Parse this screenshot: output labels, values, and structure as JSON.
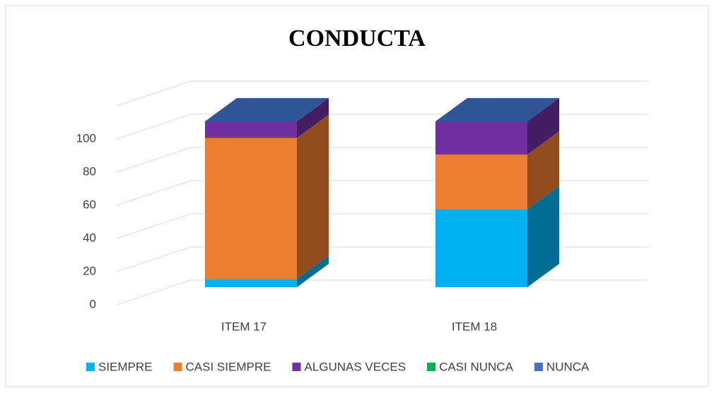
{
  "chart_data": {
    "type": "bar3d_stacked",
    "title": "CONDUCTA",
    "categories": [
      "ITEM 17",
      "ITEM 18"
    ],
    "series": [
      {
        "name": "SIEMPRE",
        "color": "#00b0f0",
        "values": [
          5,
          47
        ]
      },
      {
        "name": "CASI SIEMPRE",
        "color": "#ed7d31",
        "values": [
          85,
          33
        ]
      },
      {
        "name": "ALGUNAS VECES",
        "color": "#7030a0",
        "values": [
          10,
          20
        ]
      },
      {
        "name": "CASI NUNCA",
        "color": "#00b050",
        "values": [
          0,
          0
        ]
      },
      {
        "name": "NUNCA",
        "color": "#4472c4",
        "values": [
          0,
          0
        ]
      }
    ],
    "ylim": [
      0,
      120
    ],
    "yticks": [
      0,
      20,
      40,
      60,
      80,
      100
    ],
    "grid": true,
    "legend": "bottom"
  }
}
